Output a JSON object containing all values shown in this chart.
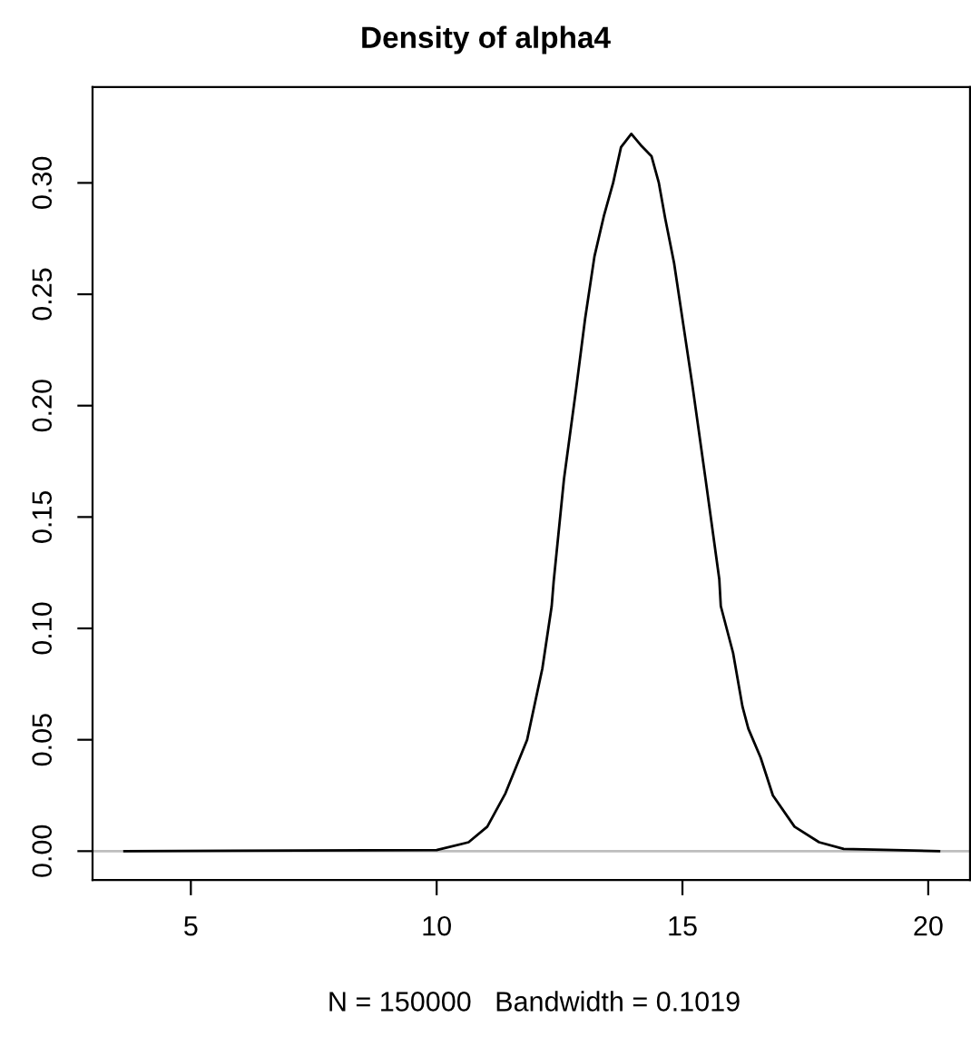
{
  "chart_data": {
    "type": "line",
    "title": "Density of alpha4",
    "xlabel": "N = 150000   Bandwidth = 0.1019",
    "x": [
      3.65,
      10.0,
      10.65,
      11.03,
      11.4,
      11.84,
      12.15,
      12.34,
      12.38,
      12.59,
      12.84,
      13.02,
      13.21,
      13.4,
      13.59,
      13.75,
      13.96,
      14.15,
      14.37,
      14.52,
      14.65,
      14.83,
      15.02,
      15.21,
      15.47,
      15.75,
      15.78,
      16.03,
      16.22,
      16.34,
      16.59,
      16.84,
      17.28,
      17.78,
      18.28,
      20.22
    ],
    "series": [
      {
        "color": "#000000",
        "values": [
          0.0,
          0.0005,
          0.004,
          0.011,
          0.026,
          0.05,
          0.082,
          0.11,
          0.121,
          0.167,
          0.208,
          0.239,
          0.267,
          0.285,
          0.3,
          0.316,
          0.322,
          0.317,
          0.312,
          0.3,
          0.284,
          0.264,
          0.236,
          0.208,
          0.167,
          0.122,
          0.11,
          0.089,
          0.065,
          0.055,
          0.042,
          0.025,
          0.011,
          0.004,
          0.001,
          0.0
        ]
      }
    ],
    "xlim": [
      3.0,
      20.85
    ],
    "ylim": [
      -0.013,
      0.343
    ],
    "xticks": [
      5,
      10,
      15,
      20
    ],
    "yticks": [
      {
        "value": 0,
        "label": "0.00"
      },
      {
        "value": 0.05,
        "label": "0.05"
      },
      {
        "value": 0.1,
        "label": "0.10"
      },
      {
        "value": 0.15,
        "label": "0.15"
      },
      {
        "value": 0.2,
        "label": "0.20"
      },
      {
        "value": 0.25,
        "label": "0.25"
      },
      {
        "value": 0.3,
        "label": "0.30"
      }
    ],
    "ref_lines": [
      {
        "axis": "y",
        "value": 0,
        "color": "#bebebe"
      }
    ],
    "grid": false,
    "legend": false,
    "marker": "none",
    "line_style": "solid"
  }
}
